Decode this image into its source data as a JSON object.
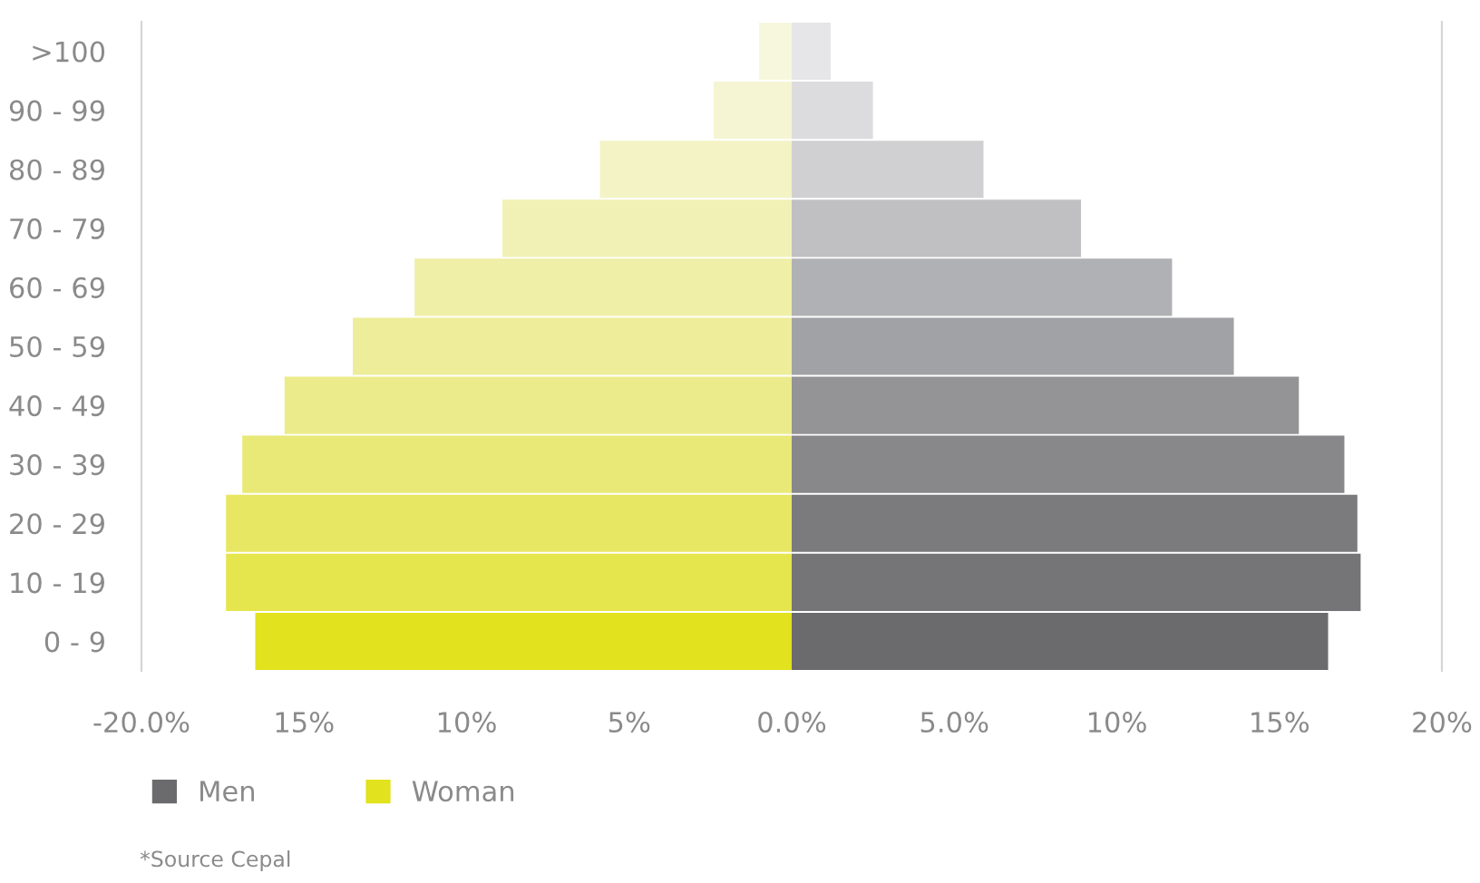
{
  "chart_data": {
    "type": "bar",
    "orientation": "horizontal",
    "categories": [
      ">100",
      "90 - 99",
      "80 - 89",
      "70 - 79",
      "60 - 69",
      "50 - 59",
      "40 - 49",
      "30 - 39",
      "20 - 29",
      "10 - 19",
      "0 - 9"
    ],
    "series": [
      {
        "name": "Men",
        "color": "#6b6b6e",
        "colors": [
          "#e6e6e8",
          "#dcdcde",
          "#d0d0d2",
          "#c0c0c2",
          "#b0b1b4",
          "#a1a2a5",
          "#949497",
          "#88888b",
          "#7b7b7e",
          "#757578",
          "#6b6b6e"
        ],
        "values": [
          1.2,
          2.5,
          5.9,
          8.9,
          11.7,
          13.6,
          15.6,
          17.0,
          17.4,
          17.5,
          16.5
        ]
      },
      {
        "name": "Woman",
        "color": "#e2e21e",
        "colors": [
          "#f7f7de",
          "#f5f5d4",
          "#f3f3c6",
          "#f1f1b6",
          "#efefa8",
          "#eded9a",
          "#ebeb8c",
          "#e9e977",
          "#e7e763",
          "#e5e54e",
          "#e2e21e"
        ],
        "values": [
          -1.0,
          -2.4,
          -5.9,
          -8.9,
          -11.6,
          -13.5,
          -15.6,
          -16.9,
          -17.4,
          -17.4,
          -16.5
        ]
      }
    ],
    "xlim": [
      -20,
      20
    ],
    "xticks": [
      {
        "value": -20,
        "label": "-20.0%"
      },
      {
        "value": -15,
        "label": "15%"
      },
      {
        "value": -10,
        "label": "10%"
      },
      {
        "value": -5,
        "label": "5%"
      },
      {
        "value": 0,
        "label": "0.0%"
      },
      {
        "value": 5,
        "label": "5.0%"
      },
      {
        "value": 10,
        "label": "10%"
      },
      {
        "value": 15,
        "label": "15%"
      },
      {
        "value": 20,
        "label": "20%"
      }
    ],
    "legend": "bottom left",
    "stacked": true,
    "grid": false,
    "annotations": [
      "*Source Cepal"
    ]
  }
}
